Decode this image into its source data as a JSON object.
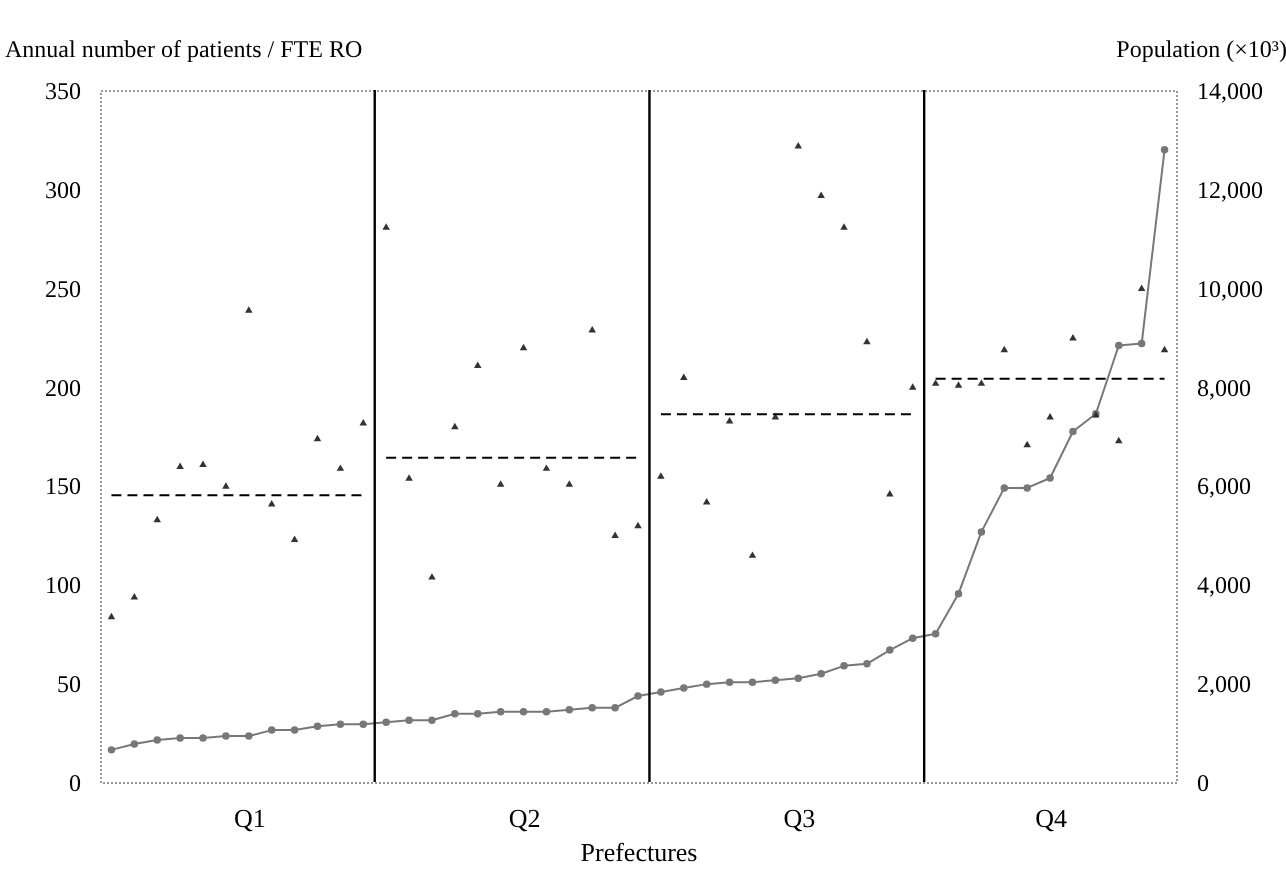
{
  "chart_data": {
    "type": "scatter",
    "ylabel": "Annual number of patients / FTE RO",
    "y2label": "Population (×10³)",
    "xlabel": "Prefectures",
    "categories": [
      null,
      null,
      null,
      null,
      null,
      null,
      "Q1",
      null,
      null,
      null,
      null,
      null,
      null,
      null,
      null,
      null,
      null,
      null,
      "Q2",
      null,
      null,
      null,
      null,
      null,
      null,
      null,
      null,
      null,
      null,
      null,
      "Q3",
      null,
      null,
      null,
      null,
      null,
      null,
      null,
      null,
      null,
      null,
      "Q4",
      null,
      null,
      null,
      null,
      null
    ],
    "ylim": [
      0,
      350
    ],
    "yticks": [
      0,
      50,
      100,
      150,
      200,
      250,
      300,
      350
    ],
    "y2lim": [
      0,
      14000
    ],
    "y2ticks": [
      0,
      {
        "value": 2000,
        "label": "2,000"
      },
      {
        "value": 4000,
        "label": "4,000"
      },
      {
        "value": 6000,
        "label": "6,000"
      },
      {
        "value": 8000,
        "label": "8,000"
      },
      {
        "value": 10000,
        "label": "10,000"
      },
      {
        "value": 12000,
        "label": "12,000"
      },
      {
        "value": 14000,
        "label": "14,000"
      }
    ],
    "grid": false,
    "series": [
      {
        "marker": "triangle",
        "color": "#333333",
        "values": [
          84,
          94,
          133,
          160,
          161,
          150,
          239,
          141,
          123,
          174,
          159,
          182,
          281,
          154,
          104,
          180,
          211,
          151,
          220,
          159,
          151,
          229,
          125,
          130,
          155,
          205,
          142,
          183,
          115,
          185,
          322,
          297,
          281,
          223,
          146,
          200,
          202,
          201,
          202,
          219,
          171,
          185,
          225,
          186,
          173,
          250,
          219
        ]
      },
      {
        "type": "line",
        "axis": "y2",
        "marker": "circle",
        "line_style": "solid",
        "color": "#777777",
        "values": [
          650,
          770,
          850,
          890,
          890,
          930,
          930,
          1050,
          1050,
          1130,
          1170,
          1170,
          1210,
          1250,
          1250,
          1380,
          1380,
          1420,
          1420,
          1420,
          1460,
          1500,
          1500,
          1740,
          1820,
          1900,
          1980,
          2020,
          2020,
          2060,
          2100,
          2190,
          2350,
          2390,
          2670,
          2910,
          3000,
          3810,
          5060,
          5950,
          5950,
          6150,
          7090,
          7450,
          8830,
          8870,
          12790
        ]
      },
      {
        "type": "line",
        "marker": "none",
        "line_style": "dashed",
        "color": "#000000",
        "values": [
          145,
          145,
          145,
          145,
          145,
          145,
          145,
          145,
          145,
          145,
          145,
          145,
          null,
          null,
          null,
          null,
          null,
          null,
          null,
          null,
          null,
          null,
          null,
          null,
          null,
          null,
          null,
          null,
          null,
          null,
          null,
          null,
          null,
          null,
          null,
          null,
          null,
          null,
          null,
          null,
          null,
          null,
          null,
          null,
          null,
          null,
          null
        ]
      },
      {
        "type": "line",
        "marker": "none",
        "line_style": "dashed",
        "color": "#000000",
        "values": [
          null,
          null,
          null,
          null,
          null,
          null,
          null,
          null,
          null,
          null,
          null,
          null,
          164,
          164,
          164,
          164,
          164,
          164,
          164,
          164,
          164,
          164,
          164,
          164,
          null,
          null,
          null,
          null,
          null,
          null,
          null,
          null,
          null,
          null,
          null,
          null,
          null,
          null,
          null,
          null,
          null,
          null,
          null,
          null,
          null,
          null,
          null
        ]
      },
      {
        "type": "line",
        "marker": "none",
        "line_style": "dashed",
        "color": "#000000",
        "values": [
          null,
          null,
          null,
          null,
          null,
          null,
          null,
          null,
          null,
          null,
          null,
          null,
          null,
          null,
          null,
          null,
          null,
          null,
          null,
          null,
          null,
          null,
          null,
          null,
          186,
          186,
          186,
          186,
          186,
          186,
          186,
          186,
          186,
          186,
          186,
          186,
          null,
          null,
          null,
          null,
          null,
          null,
          null,
          null,
          null,
          null,
          null
        ]
      },
      {
        "type": "line",
        "marker": "none",
        "line_style": "dashed",
        "color": "#000000",
        "values": [
          null,
          null,
          null,
          null,
          null,
          null,
          null,
          null,
          null,
          null,
          null,
          null,
          null,
          null,
          null,
          null,
          null,
          null,
          null,
          null,
          null,
          null,
          null,
          null,
          null,
          null,
          null,
          null,
          null,
          null,
          null,
          null,
          null,
          null,
          null,
          null,
          204,
          204,
          204,
          204,
          204,
          204,
          204,
          204,
          204,
          204,
          204
        ]
      }
    ]
  }
}
